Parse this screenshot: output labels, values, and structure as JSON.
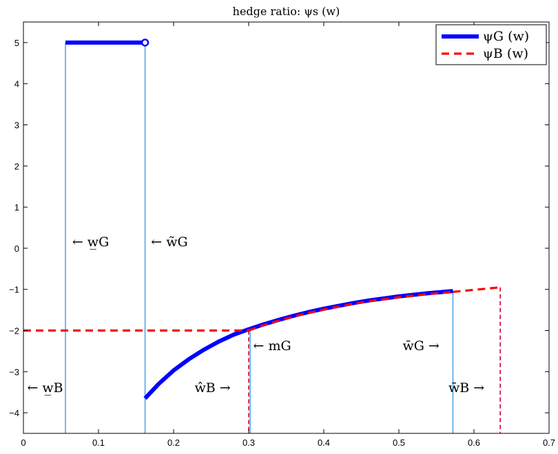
{
  "chart_data": {
    "type": "line",
    "title": "hedge ratio: ψs (w)",
    "xlim": [
      0,
      0.7
    ],
    "ylim": [
      -4.5,
      5.5
    ],
    "x_ticks": [
      0,
      0.1,
      0.2,
      0.3,
      0.4,
      0.5,
      0.6,
      0.7
    ],
    "x_tick_labels": [
      "0",
      "0.1",
      "0.2",
      "0.3",
      "0.4",
      "0.5",
      "0.6",
      "0.7"
    ],
    "y_ticks": [
      -4,
      -3,
      -2,
      -1,
      0,
      1,
      2,
      3,
      4,
      5
    ],
    "y_tick_labels": [
      "−4",
      "−3",
      "−2",
      "−1",
      "0",
      "1",
      "2",
      "3",
      "4",
      "5"
    ],
    "grid": false,
    "legend_position": "top-right",
    "colors": {
      "psi_G": "#0000ff",
      "psi_B": "#ff0000",
      "guide_light": "#4fa8e8",
      "guide_dashed": "#cc0033"
    },
    "series": [
      {
        "name": "ψG (w)",
        "style": "solid-thick",
        "segments": [
          {
            "x": [
              0.056,
              0.162
            ],
            "y": [
              5,
              5
            ],
            "end_marker": "open-circle"
          },
          {
            "x": [
              0.162,
              0.18,
              0.2,
              0.22,
              0.24,
              0.26,
              0.28,
              0.3,
              0.32,
              0.34,
              0.36,
              0.38,
              0.4,
              0.42,
              0.44,
              0.46,
              0.48,
              0.5,
              0.52,
              0.54,
              0.56,
              0.572
            ],
            "y": [
              -3.65,
              -3.3,
              -2.97,
              -2.7,
              -2.47,
              -2.27,
              -2.1,
              -1.97,
              -1.85,
              -1.74,
              -1.64,
              -1.55,
              -1.47,
              -1.4,
              -1.33,
              -1.27,
              -1.22,
              -1.17,
              -1.13,
              -1.09,
              -1.06,
              -1.04
            ]
          }
        ]
      },
      {
        "name": "ψB (w)",
        "style": "dashed",
        "segments": [
          {
            "x": [
              0,
              0.3
            ],
            "y": [
              -2,
              -2
            ]
          },
          {
            "x": [
              0.3,
              0.32,
              0.34,
              0.36,
              0.38,
              0.4,
              0.42,
              0.44,
              0.46,
              0.48,
              0.5,
              0.52,
              0.54,
              0.56,
              0.572
            ],
            "y": [
              -2,
              -1.87,
              -1.76,
              -1.66,
              -1.57,
              -1.49,
              -1.42,
              -1.35,
              -1.29,
              -1.24,
              -1.19,
              -1.15,
              -1.11,
              -1.08,
              -1.06
            ]
          },
          {
            "x": [
              0.572,
              0.635
            ],
            "y": [
              -1.06,
              -0.95
            ]
          }
        ]
      }
    ],
    "vertical_guides": [
      {
        "x": 0.056,
        "y_top": 5,
        "style": "solid-light"
      },
      {
        "x": 0.162,
        "y_top": 5,
        "style": "solid-light"
      },
      {
        "x": 0.3,
        "y_top": -2,
        "style": "dashed"
      },
      {
        "x": 0.302,
        "y_top": -2,
        "style": "solid-light"
      },
      {
        "x": 0.572,
        "y_top": -1.04,
        "style": "solid-light"
      },
      {
        "x": 0.635,
        "y_top": -0.95,
        "style": "dashed"
      }
    ],
    "annotations": [
      {
        "text": "←  w̲G",
        "x": 0.065,
        "y": 0.15
      },
      {
        "text": "←  w̃G",
        "x": 0.17,
        "y": 0.15
      },
      {
        "text": "←    mG",
        "x": 0.306,
        "y": -2.38
      },
      {
        "text": "w̄G →",
        "x": 0.505,
        "y": -2.38
      },
      {
        "text": "←  w̲B",
        "x": 0.005,
        "y": -3.4
      },
      {
        "text": "ŵB →",
        "x": 0.228,
        "y": -3.4
      },
      {
        "text": "w̄B →",
        "x": 0.566,
        "y": -3.4
      }
    ]
  }
}
